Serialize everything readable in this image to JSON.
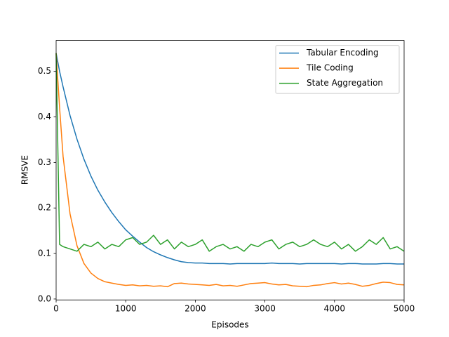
{
  "chart_data": {
    "type": "line",
    "xlabel": "Episodes",
    "ylabel": "RMSVE",
    "x": [
      0,
      50,
      100,
      200,
      300,
      400,
      500,
      600,
      700,
      800,
      900,
      1000,
      1100,
      1200,
      1300,
      1400,
      1500,
      1600,
      1700,
      1800,
      1900,
      2000,
      2100,
      2200,
      2300,
      2400,
      2500,
      2600,
      2700,
      2800,
      2900,
      3000,
      3100,
      3200,
      3300,
      3400,
      3500,
      3600,
      3700,
      3800,
      3900,
      4000,
      4100,
      4200,
      4300,
      4400,
      4500,
      4600,
      4700,
      4800,
      4900,
      5000
    ],
    "series": [
      {
        "name": "Tabular Encoding",
        "color": "#1f77b4",
        "values": [
          0.54,
          0.5,
          0.466,
          0.403,
          0.351,
          0.307,
          0.27,
          0.239,
          0.213,
          0.19,
          0.17,
          0.152,
          0.138,
          0.125,
          0.113,
          0.104,
          0.097,
          0.091,
          0.086,
          0.082,
          0.08,
          0.079,
          0.079,
          0.078,
          0.078,
          0.078,
          0.077,
          0.078,
          0.078,
          0.078,
          0.078,
          0.078,
          0.079,
          0.078,
          0.078,
          0.078,
          0.077,
          0.078,
          0.078,
          0.078,
          0.078,
          0.078,
          0.077,
          0.078,
          0.078,
          0.077,
          0.077,
          0.077,
          0.078,
          0.078,
          0.077,
          0.077
        ]
      },
      {
        "name": "Tile Coding",
        "color": "#ff7f0e",
        "values": [
          0.54,
          0.42,
          0.313,
          0.187,
          0.117,
          0.078,
          0.057,
          0.045,
          0.038,
          0.035,
          0.032,
          0.03,
          0.031,
          0.029,
          0.03,
          0.028,
          0.029,
          0.027,
          0.034,
          0.035,
          0.033,
          0.032,
          0.031,
          0.03,
          0.032,
          0.029,
          0.03,
          0.028,
          0.031,
          0.034,
          0.035,
          0.036,
          0.033,
          0.031,
          0.032,
          0.029,
          0.028,
          0.027,
          0.03,
          0.031,
          0.034,
          0.036,
          0.033,
          0.035,
          0.032,
          0.028,
          0.03,
          0.034,
          0.037,
          0.036,
          0.032,
          0.031
        ]
      },
      {
        "name": "State Aggregation",
        "color": "#2ca02c",
        "values": [
          0.54,
          0.12,
          0.115,
          0.11,
          0.105,
          0.12,
          0.115,
          0.125,
          0.11,
          0.12,
          0.115,
          0.13,
          0.135,
          0.12,
          0.125,
          0.14,
          0.12,
          0.13,
          0.11,
          0.125,
          0.115,
          0.12,
          0.13,
          0.105,
          0.115,
          0.12,
          0.11,
          0.115,
          0.105,
          0.12,
          0.115,
          0.125,
          0.13,
          0.11,
          0.12,
          0.125,
          0.115,
          0.12,
          0.13,
          0.12,
          0.115,
          0.125,
          0.11,
          0.12,
          0.105,
          0.115,
          0.13,
          0.12,
          0.135,
          0.11,
          0.115,
          0.105
        ]
      }
    ],
    "xlim": [
      0,
      5000
    ],
    "xticks": [
      0,
      1000,
      2000,
      3000,
      4000,
      5000
    ],
    "ylim": [
      -0.002,
      0.568
    ],
    "yticks": [
      {
        "value": 0,
        "label": "0.0"
      },
      0.1,
      0.2,
      0.3,
      0.4,
      0.5
    ],
    "legend": "upper right",
    "grid": false
  }
}
